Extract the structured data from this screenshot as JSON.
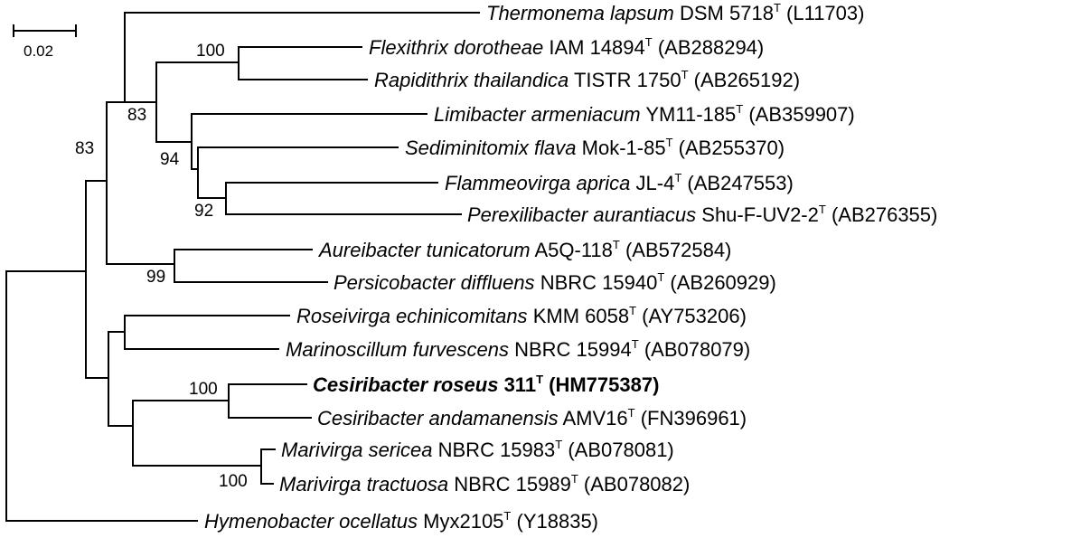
{
  "scale_bar": {
    "label": "0.02"
  },
  "taxa": [
    {
      "id": "t1",
      "genus_species": "Thermonema lapsum",
      "strain": "DSM 5718",
      "type_mark": "T",
      "accession": "(L11703)",
      "bold": false
    },
    {
      "id": "t2",
      "genus_species": "Flexithrix dorotheae",
      "strain": "IAM 14894",
      "type_mark": "T",
      "accession": "(AB288294)",
      "bold": false
    },
    {
      "id": "t3",
      "genus_species": "Rapidithrix thailandica",
      "strain": "TISTR 1750",
      "type_mark": "T",
      "accession": "(AB265192)",
      "bold": false
    },
    {
      "id": "t4",
      "genus_species": "Limibacter armeniacum",
      "strain": "YM11-185",
      "type_mark": "T",
      "accession": "(AB359907)",
      "bold": false
    },
    {
      "id": "t5",
      "genus_species": "Sediminitomix flava",
      "strain": "Mok-1-85",
      "type_mark": "T",
      "accession": "(AB255370)",
      "bold": false
    },
    {
      "id": "t6",
      "genus_species": "Flammeovirga aprica",
      "strain": "JL-4",
      "type_mark": "T",
      "accession": "(AB247553)",
      "bold": false
    },
    {
      "id": "t7",
      "genus_species": "Perexilibacter aurantiacus",
      "strain": "Shu-F-UV2-2",
      "type_mark": "T",
      "accession": "(AB276355)",
      "bold": false
    },
    {
      "id": "t8",
      "genus_species": "Aureibacter tunicatorum",
      "strain": "A5Q-118",
      "type_mark": "T",
      "accession": "(AB572584)",
      "bold": false
    },
    {
      "id": "t9",
      "genus_species": "Persicobacter diffluens",
      "strain": "NBRC 15940",
      "type_mark": "T",
      "accession": "(AB260929)",
      "bold": false
    },
    {
      "id": "t10",
      "genus_species": "Roseivirga echinicomitans",
      "strain": "KMM 6058",
      "type_mark": "T",
      "accession": "(AY753206)",
      "bold": false
    },
    {
      "id": "t11",
      "genus_species": "Marinoscillum furvescens",
      "strain": "NBRC 15994",
      "type_mark": "T",
      "accession": "(AB078079)",
      "bold": false
    },
    {
      "id": "t12",
      "genus_species": "Cesiribacter roseus",
      "strain": "311",
      "type_mark": "T",
      "accession": "(HM775387)",
      "bold": true
    },
    {
      "id": "t13",
      "genus_species": "Cesiribacter andamanensis",
      "strain": "AMV16",
      "type_mark": "T",
      "accession": "(FN396961)",
      "bold": false
    },
    {
      "id": "t14",
      "genus_species": "Marivirga sericea",
      "strain": "NBRC 15983",
      "type_mark": "T",
      "accession": "(AB078081)",
      "bold": false
    },
    {
      "id": "t15",
      "genus_species": "Marivirga tractuosa",
      "strain": "NBRC 15989",
      "type_mark": "T",
      "accession": "(AB078082)",
      "bold": false
    },
    {
      "id": "t16",
      "genus_species": "Hymenobacter ocellatus",
      "strain": "Myx2105",
      "type_mark": "T",
      "accession": "(Y18835)",
      "bold": false
    }
  ],
  "bootstrap": [
    {
      "id": "b-flexi-rapid",
      "value": "100"
    },
    {
      "id": "b-thermo-clade",
      "value": "83"
    },
    {
      "id": "b-limi-clade",
      "value": "94"
    },
    {
      "id": "b-flamm-perex",
      "value": "92"
    },
    {
      "id": "b-ingroup",
      "value": "83"
    },
    {
      "id": "b-aurei-persico",
      "value": "99"
    },
    {
      "id": "b-cesiribacter",
      "value": "100"
    },
    {
      "id": "b-marivirga",
      "value": "100"
    }
  ]
}
